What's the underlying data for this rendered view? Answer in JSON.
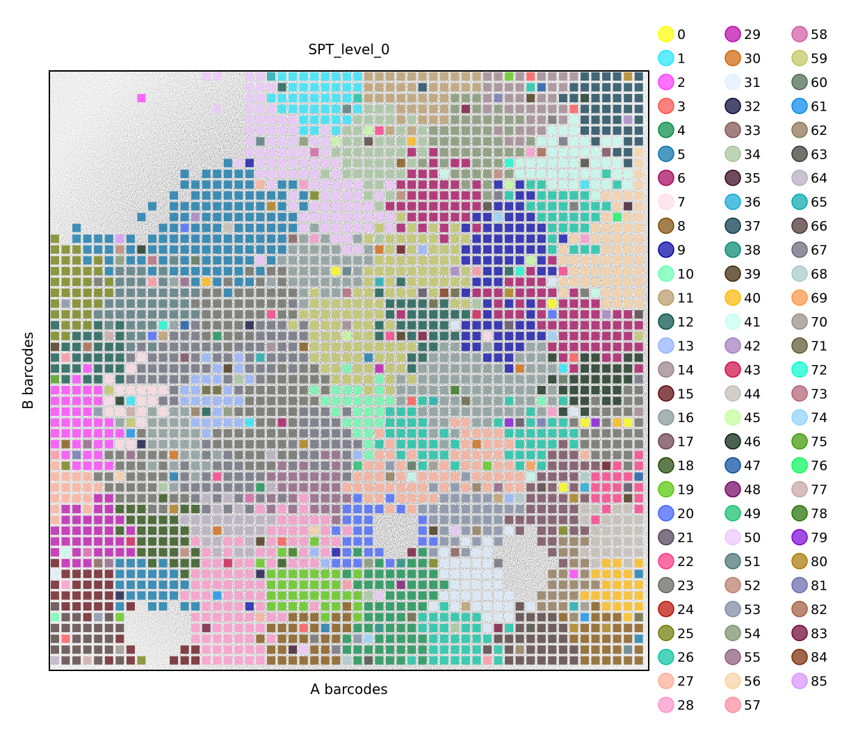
{
  "chart_data": {
    "type": "scatter",
    "title": "SPT_level_0",
    "xlabel": "A barcodes",
    "ylabel": "B barcodes",
    "grid": false,
    "legend_position": "right",
    "legend_columns": 3,
    "marker": "square",
    "background": "tissue-image",
    "categories": [
      "0",
      "1",
      "2",
      "3",
      "4",
      "5",
      "6",
      "7",
      "8",
      "9",
      "10",
      "11",
      "12",
      "13",
      "14",
      "15",
      "16",
      "17",
      "18",
      "19",
      "20",
      "21",
      "22",
      "23",
      "24",
      "25",
      "26",
      "27",
      "28",
      "29",
      "30",
      "31",
      "32",
      "33",
      "34",
      "35",
      "36",
      "37",
      "38",
      "39",
      "40",
      "41",
      "42",
      "43",
      "44",
      "45",
      "46",
      "47",
      "48",
      "49",
      "50",
      "51",
      "52",
      "53",
      "54",
      "55",
      "56",
      "57",
      "58",
      "59",
      "60",
      "61",
      "62",
      "63",
      "64",
      "65",
      "66",
      "67",
      "68",
      "69",
      "70",
      "71",
      "72",
      "73",
      "74",
      "75",
      "76",
      "77",
      "78",
      "79",
      "80",
      "81",
      "82",
      "83",
      "84",
      "85"
    ],
    "colors": [
      "#ffff00",
      "#1ce6ff",
      "#ff34ff",
      "#ff4a46",
      "#008941",
      "#006fa6",
      "#a30059",
      "#ffdbe5",
      "#7a4900",
      "#0000a6",
      "#63ffac",
      "#b79762",
      "#004d43",
      "#8fb0ff",
      "#997d87",
      "#5a0007",
      "#809693",
      "#6a3a4c",
      "#1b4400",
      "#4fc601",
      "#3b5dff",
      "#4a3b53",
      "#ff2f80",
      "#61615a",
      "#ba0900",
      "#6b7900",
      "#00c2a0",
      "#ffaa92",
      "#ff90c9",
      "#b903aa",
      "#d16100",
      "#ddefff",
      "#000035",
      "#7b4f4b",
      "#a1c299",
      "#300018",
      "#0aa6d8",
      "#013349",
      "#00846f",
      "#372101",
      "#ffb500",
      "#c2ffed",
      "#a079bf",
      "#cc0744",
      "#c0b9b2",
      "#c2ff99",
      "#001e09",
      "#00489c",
      "#6f0062",
      "#0cbd66",
      "#eec3ff",
      "#456d75",
      "#b77b68",
      "#7a87a1",
      "#788d66",
      "#885578",
      "#fad09f",
      "#ff8a9a",
      "#d157a0",
      "#bec459",
      "#456648",
      "#0086ed",
      "#886f4c",
      "#34362d",
      "#b4a8bd",
      "#00a6aa",
      "#452c2c",
      "#636375",
      "#a3c8c9",
      "#ff913f",
      "#938a81",
      "#575329",
      "#00fecf",
      "#b05b6f",
      "#8cd0ff",
      "#3b9700",
      "#04f757",
      "#c8a1a1",
      "#1e6e00",
      "#7900d7",
      "#a77500",
      "#6367a9",
      "#a05837",
      "#6b002c",
      "#772600",
      "#d790ff"
    ]
  }
}
